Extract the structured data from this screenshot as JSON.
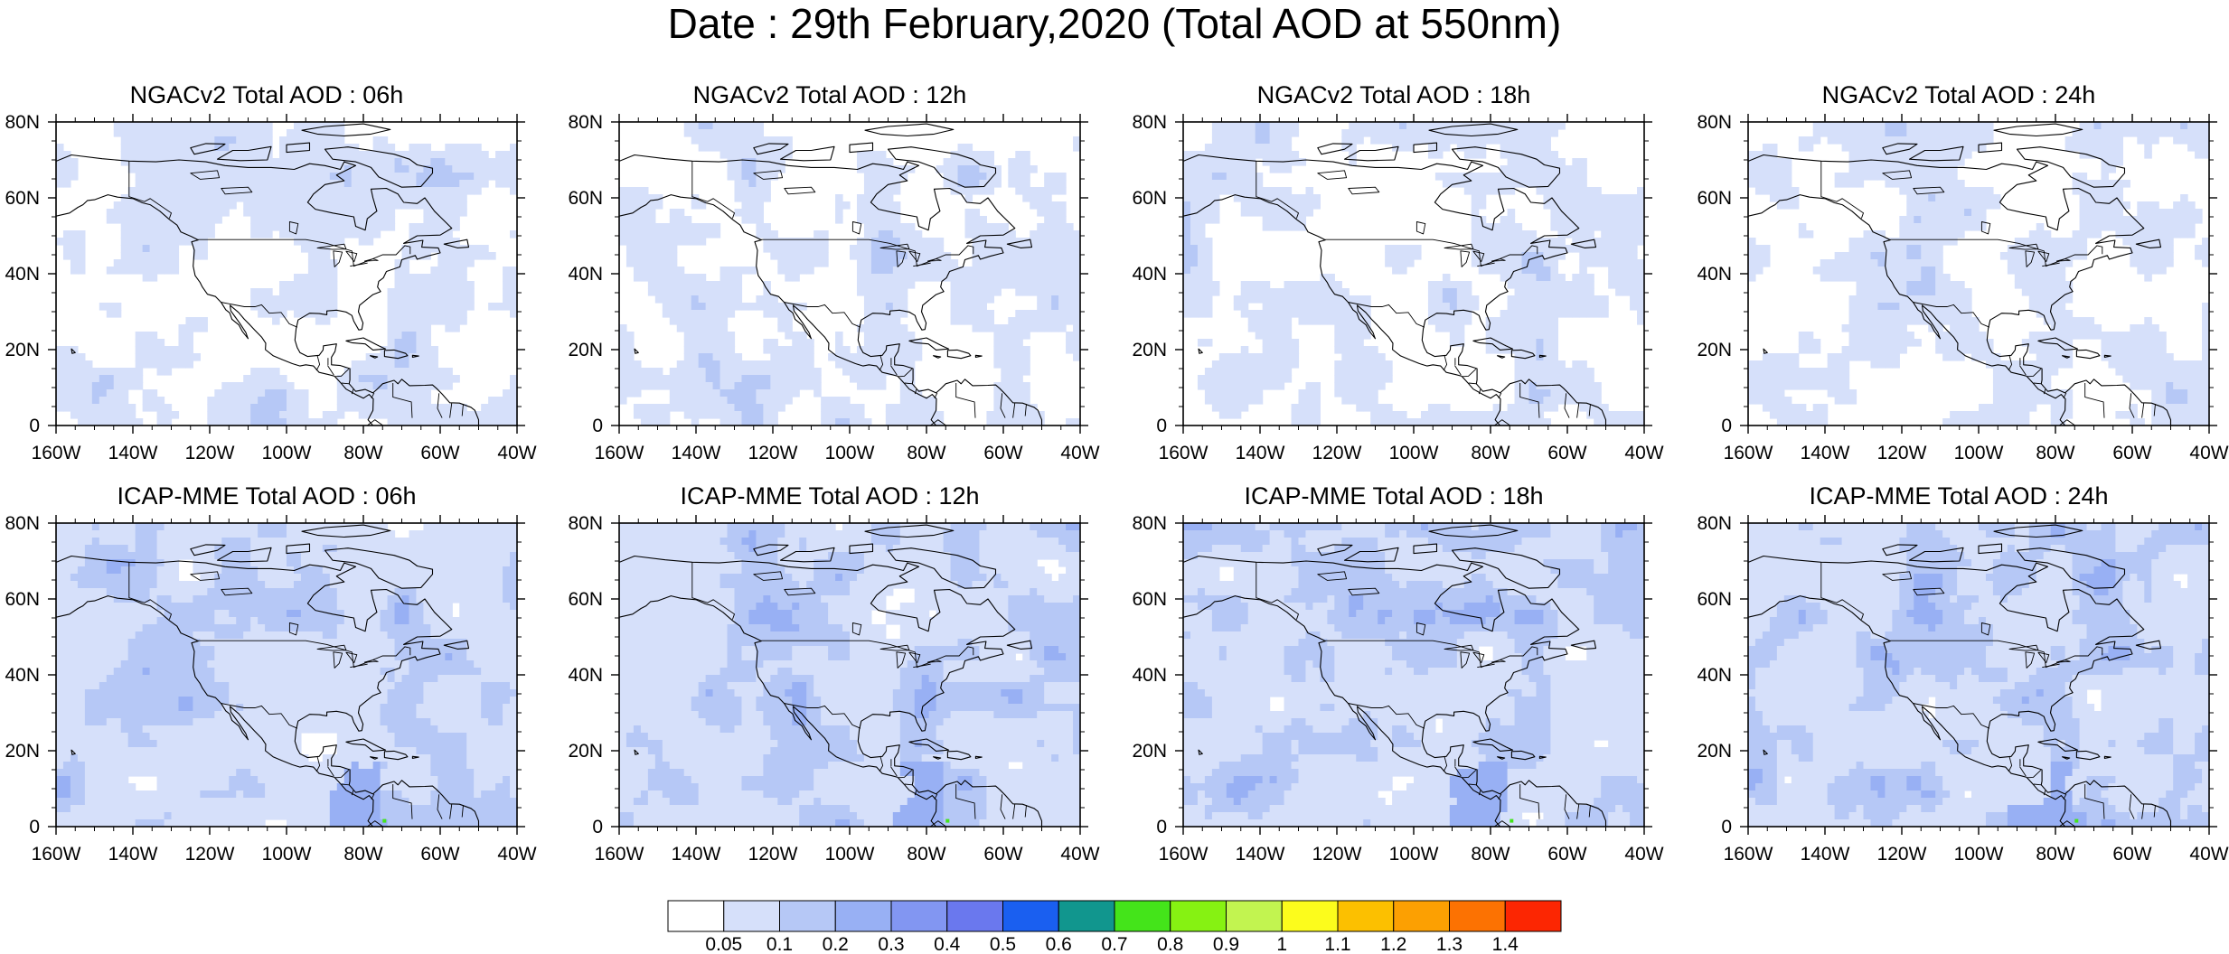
{
  "title": "Date : 29th February,2020 (Total AOD at 550nm)",
  "map": {
    "lon_ticks": [
      "160W",
      "140W",
      "120W",
      "100W",
      "80W",
      "60W",
      "40W"
    ],
    "lat_ticks": [
      "0",
      "20N",
      "40N",
      "60N",
      "80N"
    ]
  },
  "panels": [
    {
      "title": "NGACv2 Total AOD : 06h",
      "model": "NGACv2",
      "hour": "06h"
    },
    {
      "title": "NGACv2 Total AOD : 12h",
      "model": "NGACv2",
      "hour": "12h"
    },
    {
      "title": "NGACv2 Total AOD : 18h",
      "model": "NGACv2",
      "hour": "18h"
    },
    {
      "title": "NGACv2 Total AOD : 24h",
      "model": "NGACv2",
      "hour": "24h"
    },
    {
      "title": "ICAP-MME Total AOD : 06h",
      "model": "ICAP-MME",
      "hour": "06h"
    },
    {
      "title": "ICAP-MME Total AOD : 12h",
      "model": "ICAP-MME",
      "hour": "12h"
    },
    {
      "title": "ICAP-MME Total AOD : 18h",
      "model": "ICAP-MME",
      "hour": "18h"
    },
    {
      "title": "ICAP-MME Total AOD : 24h",
      "model": "ICAP-MME",
      "hour": "24h"
    }
  ],
  "colorbar": {
    "labels": [
      "0.05",
      "0.1",
      "0.2",
      "0.3",
      "0.4",
      "0.5",
      "0.6",
      "0.7",
      "0.8",
      "0.9",
      "1",
      "1.1",
      "1.2",
      "1.3",
      "1.4"
    ],
    "colors": [
      "#ffffff",
      "#d6e0fa",
      "#b6c8f6",
      "#98b0f4",
      "#8296f2",
      "#6a78ee",
      "#1a5ff0",
      "#11968e",
      "#44e41a",
      "#86f212",
      "#c2f450",
      "#fcfc1c",
      "#fcc000",
      "#fca002",
      "#fc7202",
      "#fc2602"
    ]
  }
}
